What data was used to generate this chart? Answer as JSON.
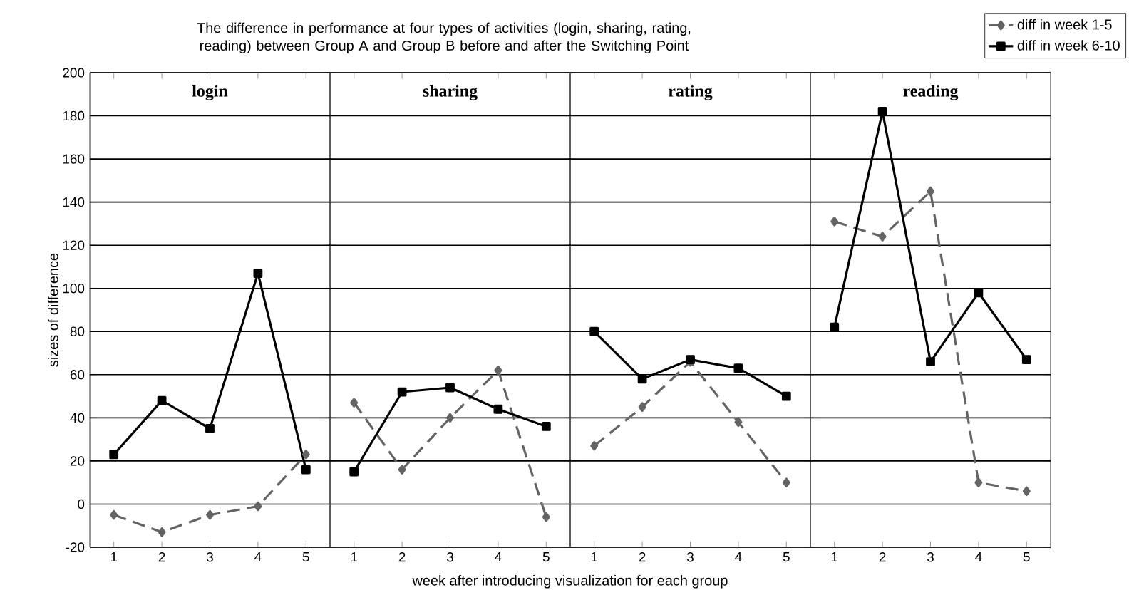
{
  "chart_data": [
    {
      "type": "line",
      "title": "The difference in performance at four types of activities (login, sharing, rating, reading) between Group A and Group B before and after the Switching Point",
      "xlabel": "week after introducing visualization for each group",
      "ylabel": "sizes of difference",
      "annotations": [
        "login"
      ],
      "categories": [
        "1",
        "2",
        "3",
        "4",
        "5"
      ],
      "ylim": [
        -20,
        200
      ],
      "yticks": [
        -20,
        0,
        20,
        40,
        60,
        80,
        100,
        120,
        140,
        160,
        180,
        200
      ],
      "grid": "y",
      "series": [
        {
          "color": "#646464",
          "marker": "diamond",
          "line_style": "dashed",
          "values": [
            -5,
            -13,
            -5,
            -1,
            23
          ]
        },
        {
          "color": "#000000",
          "marker": "square",
          "line_style": "solid",
          "values": [
            23,
            48,
            35,
            107,
            16
          ]
        }
      ]
    },
    {
      "type": "line",
      "annotations": [
        "sharing"
      ],
      "categories": [
        "1",
        "2",
        "3",
        "4",
        "5"
      ],
      "ylim": [
        -20,
        200
      ],
      "yticks": [
        -20,
        0,
        20,
        40,
        60,
        80,
        100,
        120,
        140,
        160,
        180,
        200
      ],
      "grid": "y",
      "tick_labels": "x",
      "series": [
        {
          "color": "#646464",
          "marker": "diamond",
          "line_style": "dashed",
          "values": [
            47,
            16,
            40,
            62,
            -6
          ]
        },
        {
          "color": "#000000",
          "marker": "square",
          "line_style": "solid",
          "values": [
            15,
            52,
            54,
            44,
            36
          ]
        }
      ]
    },
    {
      "type": "line",
      "annotations": [
        "rating"
      ],
      "categories": [
        "1",
        "2",
        "3",
        "4",
        "5"
      ],
      "ylim": [
        -20,
        200
      ],
      "yticks": [
        -20,
        0,
        20,
        40,
        60,
        80,
        100,
        120,
        140,
        160,
        180,
        200
      ],
      "grid": "y",
      "tick_labels": "x",
      "series": [
        {
          "color": "#646464",
          "marker": "diamond",
          "line_style": "dashed",
          "values": [
            27,
            45,
            66,
            38,
            10
          ]
        },
        {
          "color": "#000000",
          "marker": "square",
          "line_style": "solid",
          "values": [
            80,
            58,
            67,
            63,
            50
          ]
        }
      ]
    },
    {
      "type": "line",
      "annotations": [
        "reading"
      ],
      "categories": [
        "1",
        "2",
        "3",
        "4",
        "5"
      ],
      "ylim": [
        -20,
        200
      ],
      "yticks": [
        -20,
        0,
        20,
        40,
        60,
        80,
        100,
        120,
        140,
        160,
        180,
        200
      ],
      "grid": "y",
      "tick_labels": "x",
      "legend": "top right",
      "series": [
        {
          "name": "diff in week 1-5",
          "color": "#646464",
          "marker": "diamond",
          "line_style": "dashed",
          "values": [
            131,
            124,
            145,
            10,
            6
          ]
        },
        {
          "name": "diff in week 6-10",
          "color": "#000000",
          "marker": "square",
          "line_style": "solid",
          "values": [
            82,
            182,
            66,
            98,
            67
          ]
        }
      ]
    }
  ]
}
